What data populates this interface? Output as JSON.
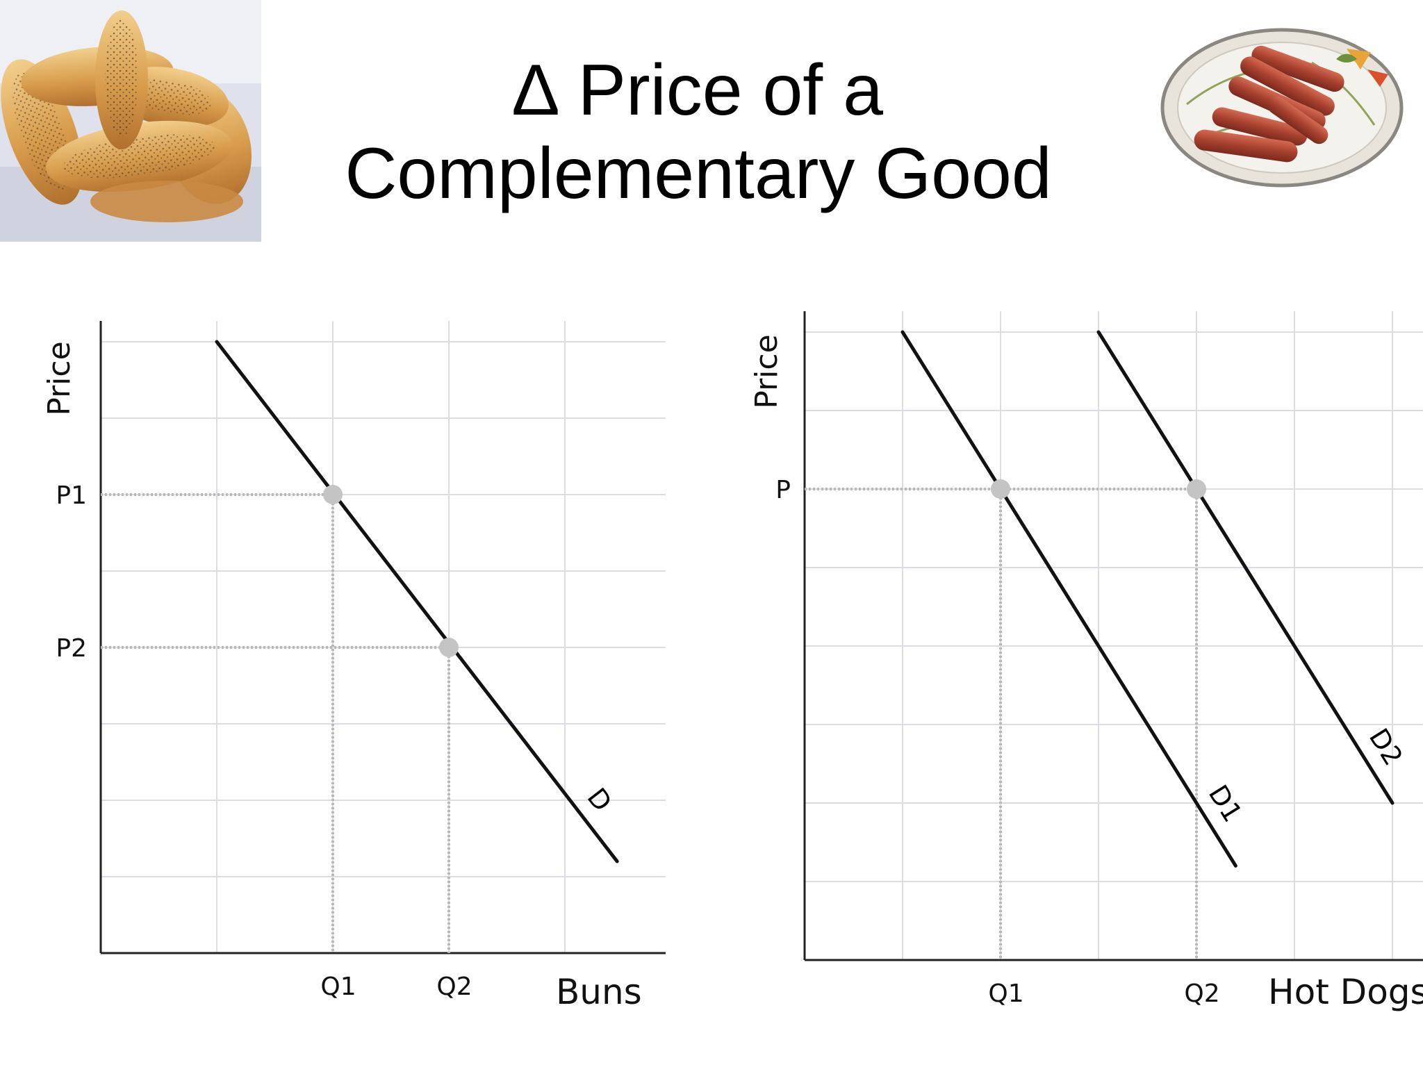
{
  "title": {
    "line1": "∆ Price of a",
    "line2": "Complementary Good"
  },
  "photos": {
    "left": {
      "icon": "hot-dog-buns-photo"
    },
    "right": {
      "icon": "hot-dogs-platter-photo"
    }
  },
  "colors": {
    "curve": "#111111",
    "grid": "#dcdce4",
    "guide": "#b8b8b8",
    "point": "#c4c4c4",
    "axis": "#222222"
  },
  "chart_data": [
    {
      "type": "line",
      "xlabel": "Buns",
      "ylabel": "Price",
      "xlim": [
        0,
        5
      ],
      "ylim": [
        0,
        8
      ],
      "grid": true,
      "x_ticks": [
        {
          "label": "Q1",
          "value": 2
        },
        {
          "label": "Q2",
          "value": 3
        }
      ],
      "y_ticks": [
        {
          "label": "P1",
          "value": 6
        },
        {
          "label": "P2",
          "value": 4
        }
      ],
      "series": [
        {
          "name": "D",
          "x": [
            1,
            4.45
          ],
          "y": [
            8,
            1.2
          ]
        }
      ],
      "points": [
        {
          "x": 2,
          "y": 6
        },
        {
          "x": 3,
          "y": 4
        }
      ]
    },
    {
      "type": "line",
      "xlabel": "Hot Dogs",
      "ylabel": "Price",
      "xlim": [
        0,
        6
      ],
      "ylim": [
        0,
        8
      ],
      "grid": true,
      "x_ticks": [
        {
          "label": "Q1",
          "value": 2
        },
        {
          "label": "Q2",
          "value": 4
        }
      ],
      "y_ticks": [
        {
          "label": "P",
          "value": 6
        }
      ],
      "series": [
        {
          "name": "D1",
          "x": [
            1,
            4.4
          ],
          "y": [
            8,
            1.2
          ]
        },
        {
          "name": "D2",
          "x": [
            3,
            6
          ],
          "y": [
            8,
            2
          ]
        }
      ],
      "points": [
        {
          "x": 2,
          "y": 6
        },
        {
          "x": 4,
          "y": 6
        }
      ]
    }
  ]
}
